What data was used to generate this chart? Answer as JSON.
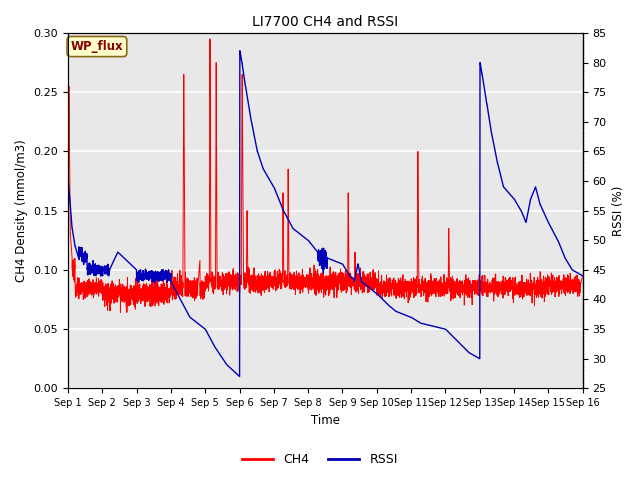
{
  "title": "LI7700 CH4 and RSSI",
  "ylabel_left": "CH4 Density (mmol/m3)",
  "ylabel_right": "RSSI (%)",
  "xlabel": "Time",
  "ylim_left": [
    0.0,
    0.3
  ],
  "ylim_right": [
    25,
    85
  ],
  "yticks_left": [
    0.0,
    0.05,
    0.1,
    0.15,
    0.2,
    0.25,
    0.3
  ],
  "yticks_right": [
    25,
    30,
    35,
    40,
    45,
    50,
    55,
    60,
    65,
    70,
    75,
    80,
    85
  ],
  "xtick_labels": [
    "Sep 1",
    "Sep 2",
    "Sep 3",
    "Sep 4",
    "Sep 5",
    "Sep 6",
    "Sep 7",
    "Sep 8",
    "Sep 9",
    "Sep 10",
    "Sep 11",
    "Sep 12",
    "Sep 13",
    "Sep 14",
    "Sep 15",
    "Sep 16"
  ],
  "ch4_color": "#FF0000",
  "rssi_color": "#0000BB",
  "bg_color": "#E8E8E8",
  "fig_bg": "#FFFFFF",
  "annotation_text": "WP_flux",
  "annotation_color": "#8B0000",
  "annotation_bg": "#FFFFCC",
  "annotation_border": "#8B6914",
  "grid_color": "#FFFFFF",
  "legend_labels": [
    "CH4",
    "RSSI"
  ],
  "n_days": 15,
  "pts_per_day": 288
}
